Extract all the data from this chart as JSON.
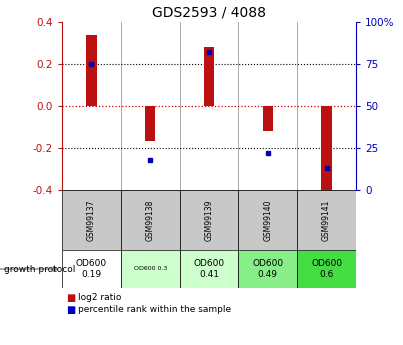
{
  "title": "GDS2593 / 4088",
  "samples": [
    "GSM99137",
    "GSM99138",
    "GSM99139",
    "GSM99140",
    "GSM99141"
  ],
  "log2_ratios": [
    0.34,
    -0.165,
    0.28,
    -0.12,
    -0.4
  ],
  "percentile_ranks": [
    75,
    18,
    82,
    22,
    13
  ],
  "bar_color": "#bb1111",
  "dot_color": "#0000bb",
  "ylim": [
    -0.4,
    0.4
  ],
  "right_ylim": [
    0,
    100
  ],
  "right_yticks": [
    0,
    25,
    50,
    75,
    100
  ],
  "right_yticklabels": [
    "0",
    "25",
    "50",
    "75",
    "100%"
  ],
  "left_yticks": [
    -0.4,
    -0.2,
    0.0,
    0.2,
    0.4
  ],
  "protocol_labels": [
    "OD600\n0.19",
    "OD600 0.3",
    "OD600\n0.41",
    "OD600\n0.49",
    "OD600\n0.6"
  ],
  "protocol_colors": [
    "#ffffff",
    "#ccffcc",
    "#ccffcc",
    "#88ee88",
    "#44dd44"
  ],
  "protocol_fontsize_small": [
    false,
    true,
    false,
    false,
    false
  ],
  "sample_bg_color": "#c8c8c8",
  "zero_line_color": "#cc0000",
  "dotted_line_color": "#000000",
  "growth_protocol_text": "growth protocol",
  "legend_log2": "log2 ratio",
  "legend_pct": "percentile rank within the sample"
}
